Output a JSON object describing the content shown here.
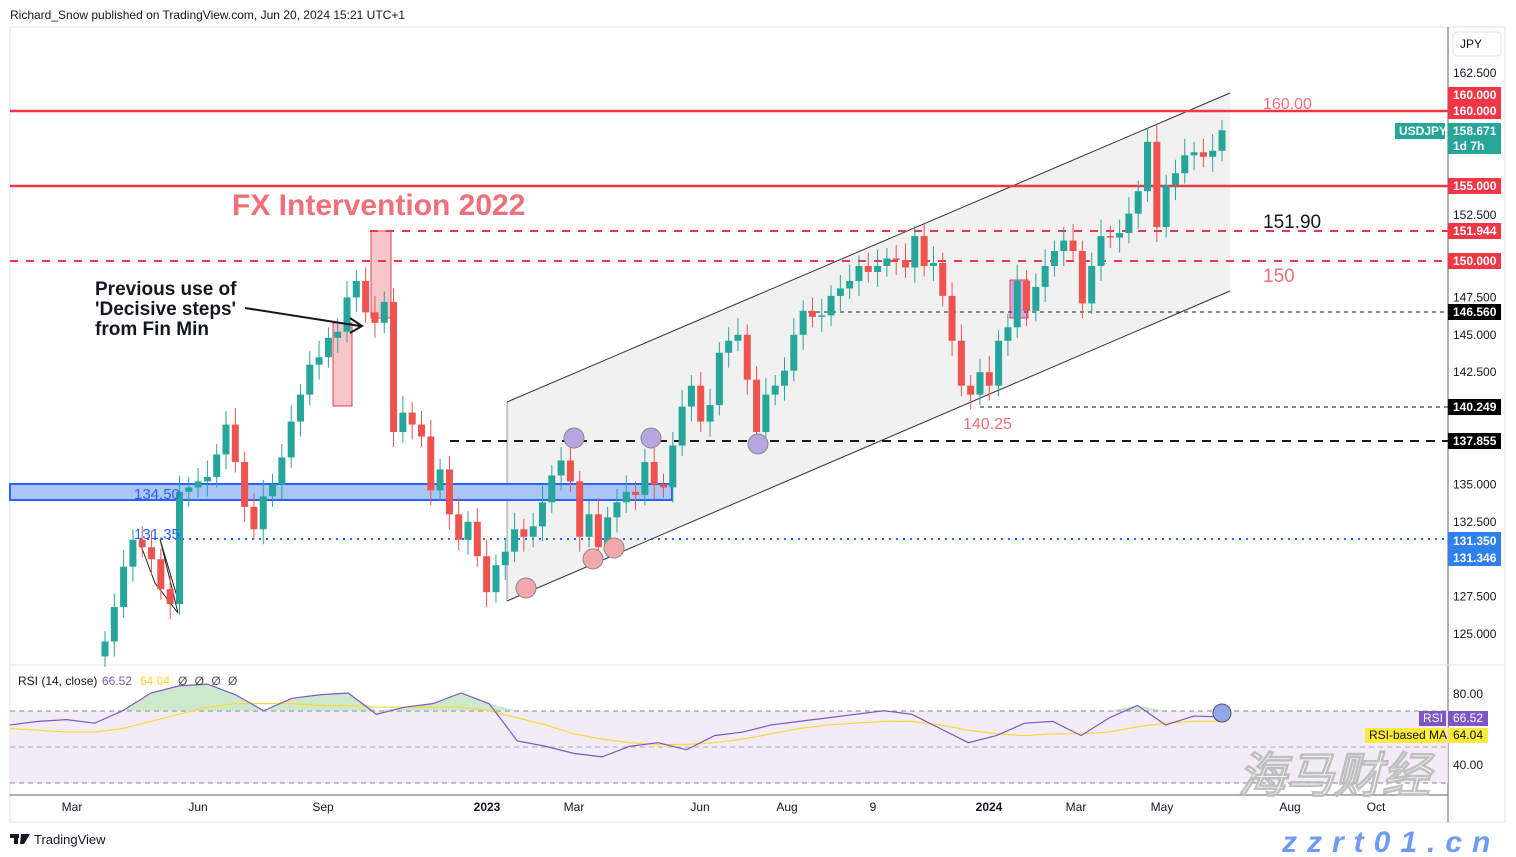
{
  "header": {
    "publisher": "Richard_Snow published on TradingView.com, Jun 20, 2024 15:21 UTC+1"
  },
  "footer": {
    "brand": "TradingView"
  },
  "watermark": {
    "cn": "海马财经",
    "url": "zzrt01.cn"
  },
  "colors": {
    "up": "#26a69a",
    "down": "#ef5350",
    "level": "#f23645",
    "blue": "#2962ff",
    "rsi": "#7e57c2",
    "rsi_ma": "#fdd835"
  },
  "axis": {
    "currency": "JPY",
    "price_ticks": [
      "162.500",
      "152.500",
      "147.500",
      "145.000",
      "142.500",
      "135.000",
      "132.500",
      "127.500",
      "125.000"
    ],
    "time_ticks": [
      "Mar",
      "Jun",
      "Sep",
      "2023",
      "Mar",
      "Jun",
      "Aug",
      "9",
      "2024",
      "Mar",
      "May",
      "Aug",
      "Oct"
    ],
    "rsi_ticks": [
      "80.00",
      "40.00"
    ]
  },
  "price_tags": {
    "p160a": "160.000",
    "p160b": "160.000",
    "symbol": "USDJPY",
    "last": "158.671",
    "countdown": "1d 7h",
    "p155": "155.000",
    "p151": "151.944",
    "p150": "150.000",
    "p146": "146.560",
    "p140": "140.249",
    "p137": "137.855",
    "p131a": "131.350",
    "p131b": "131.346"
  },
  "annotations": {
    "fx": "FX Intervention 2022",
    "note1": "Previous use of",
    "note2": "'Decisive steps'",
    "note3": "from Fin Min",
    "l160": "160.00",
    "l151": "151.90",
    "l150": "150",
    "l140": "140.25",
    "l134": "134.50",
    "l131": "131.35"
  },
  "rsi_panel": {
    "label": "RSI (14, close)",
    "rsi": "66.52",
    "ma": "64.04",
    "nulls": "Ø Ø Ø Ø",
    "rsi_tag": "RSI",
    "ma_tag": "RSI-based MA",
    "rsi_val": "66.52",
    "ma_val": "64.04"
  },
  "chart_data": {
    "type": "candlestick",
    "symbol": "USDJPY",
    "interval": "weekly",
    "ylim": [
      123,
      164
    ],
    "closes": [
      124.5,
      126.8,
      129.5,
      131.3,
      130.8,
      130,
      128,
      127,
      134.5,
      134.8,
      135.2,
      135.5,
      137,
      139,
      136.5,
      133.5,
      132,
      134.2,
      135,
      136.8,
      139.2,
      141,
      143,
      143.5,
      144.8,
      145.2,
      147.5,
      148.6,
      146.5,
      145.8,
      147.2,
      138.5,
      139.8,
      139,
      138.2,
      134.6,
      136,
      133,
      131.3,
      132.5,
      130.2,
      127.8,
      129.6,
      130.5,
      132,
      131.5,
      132.2,
      133.8,
      135.6,
      136.6,
      135.2,
      131.5,
      133,
      130.8,
      132.8,
      133.8,
      134.5,
      134.3,
      136.5,
      135,
      134.8,
      137.6,
      140.2,
      141.6,
      139.2,
      140.3,
      143.8,
      144.6,
      145,
      142,
      138.5,
      141,
      141.6,
      142.6,
      145,
      146.6,
      146.2,
      146.3,
      147.6,
      148.1,
      148.6,
      149.6,
      149.2,
      149.6,
      150.1,
      150,
      149.5,
      151.6,
      149.6,
      149.8,
      147.6,
      144.6,
      141.6,
      141,
      142.5,
      141.6,
      144.6,
      145.5,
      148.6,
      146.6,
      148.2,
      149.6,
      150.6,
      151.3,
      150.6,
      147.1,
      149.6,
      151.6,
      151.5,
      151.8,
      153.1,
      154.6,
      157.9,
      152.2,
      155,
      155.8,
      157,
      157.2,
      156.9,
      157.3,
      158.67
    ],
    "levels": [
      160,
      155,
      151.944,
      150,
      146.56,
      140.249,
      137.855,
      134.5,
      131.35
    ],
    "rsi": {
      "ylim": [
        20,
        90
      ],
      "bands": [
        70,
        50,
        30
      ],
      "rsi": [
        62,
        64,
        65,
        63,
        70,
        80,
        84,
        85,
        79,
        70,
        77,
        79,
        80,
        68,
        72,
        74,
        80,
        74,
        53,
        50,
        46,
        44,
        50,
        52,
        48,
        56,
        58,
        62,
        64,
        66,
        68,
        70,
        68,
        60,
        52,
        56,
        63,
        64,
        56,
        66,
        73,
        62,
        67,
        66.52
      ],
      "ma": [
        60,
        59,
        58,
        58,
        60,
        64,
        68,
        72,
        74,
        74,
        74,
        73,
        73,
        72,
        72,
        72,
        72,
        70,
        66,
        62,
        57,
        54,
        52,
        51,
        51,
        52,
        54,
        57,
        60,
        62,
        63,
        64,
        64,
        62,
        59,
        57,
        56,
        57,
        57,
        58,
        61,
        63,
        64,
        64.04
      ]
    }
  }
}
